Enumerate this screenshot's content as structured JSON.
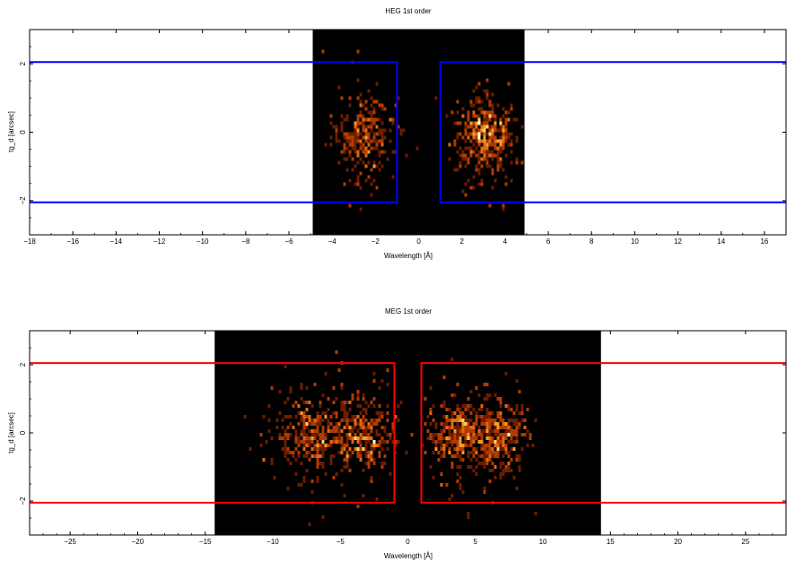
{
  "chart_data": [
    {
      "type": "heatmap",
      "title": "HEG 1st order",
      "xlabel": "Wavelength [Å]",
      "ylabel": "tg_d [arcsec]",
      "xlim": [
        -18,
        17
      ],
      "ylim": [
        -3,
        3
      ],
      "xticks": [
        -18,
        -16,
        -14,
        -12,
        -10,
        -8,
        -6,
        -4,
        -2,
        0,
        2,
        4,
        6,
        8,
        10,
        12,
        14,
        16
      ],
      "yticks": [
        -2,
        0,
        2
      ],
      "image_extent_x": [
        -4.9,
        4.9
      ],
      "background_color": "#000000",
      "region_color": "#0000ff",
      "regions": [
        {
          "x": [
            -1.0,
            -18.0
          ],
          "y": [
            -2.05,
            2.05
          ]
        },
        {
          "x": [
            1.0,
            17.0
          ],
          "y": [
            -2.05,
            2.05
          ]
        }
      ],
      "clusters": [
        {
          "x_center": -2.6,
          "y_center": -0.1,
          "x_sigma": 0.7,
          "y_sigma": 0.55,
          "count": 260
        },
        {
          "x_center": 3.0,
          "y_center": -0.1,
          "x_sigma": 0.75,
          "y_sigma": 0.5,
          "count": 420
        }
      ]
    },
    {
      "type": "heatmap",
      "title": "MEG 1st order",
      "xlabel": "Wavelength [Å]",
      "ylabel": "tg_d [arcsec]",
      "xlim": [
        -28,
        28
      ],
      "ylim": [
        -3,
        3
      ],
      "xticks": [
        -25,
        -20,
        -15,
        -10,
        -5,
        0,
        5,
        10,
        15,
        20,
        25
      ],
      "yticks": [
        -2,
        0,
        2
      ],
      "image_extent_x": [
        -14.3,
        14.3
      ],
      "background_color": "#000000",
      "region_color": "#ff0000",
      "regions": [
        {
          "x": [
            -1.0,
            -28.0
          ],
          "y": [
            -2.05,
            2.05
          ]
        },
        {
          "x": [
            1.0,
            28.0
          ],
          "y": [
            -2.05,
            2.05
          ]
        }
      ],
      "clusters": [
        {
          "x_center": -7.0,
          "y_center": -0.05,
          "x_sigma": 1.5,
          "y_sigma": 0.55,
          "count": 330
        },
        {
          "x_center": -3.2,
          "y_center": -0.1,
          "x_sigma": 1.1,
          "y_sigma": 0.5,
          "count": 300
        },
        {
          "x_center": 3.8,
          "y_center": -0.1,
          "x_sigma": 1.2,
          "y_sigma": 0.5,
          "count": 330
        },
        {
          "x_center": 6.8,
          "y_center": -0.1,
          "x_sigma": 1.1,
          "y_sigma": 0.5,
          "count": 300
        }
      ]
    }
  ]
}
